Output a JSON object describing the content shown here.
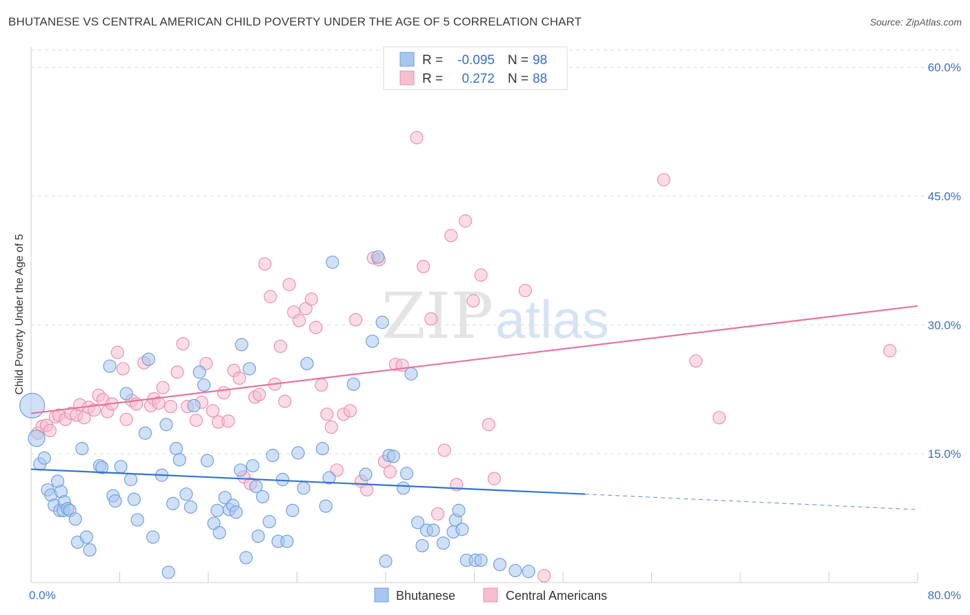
{
  "title": "BHUTANESE VS CENTRAL AMERICAN CHILD POVERTY UNDER THE AGE OF 5 CORRELATION CHART",
  "source": "Source: ZipAtlas.com",
  "watermark": {
    "zip": "ZIP",
    "atlas": "atlas"
  },
  "colors": {
    "blue_fill": "#a9c6ee",
    "blue_stroke": "#6f9fe0",
    "blue_line": "#2f73d4",
    "pink_fill": "#f6bfd0",
    "pink_stroke": "#ec8fae",
    "pink_line": "#e8739c",
    "grid": "#dddddd",
    "tick_label": "#3a6fc4"
  },
  "legend": {
    "rows": [
      {
        "r_label": "R =",
        "r_value": "-0.095",
        "n_label": "N =",
        "n_value": "98"
      },
      {
        "r_label": "R =",
        "r_value": "0.272",
        "n_label": "N =",
        "n_value": "88"
      }
    ]
  },
  "chart_data": {
    "type": "scatter",
    "title": "BHUTANESE VS CENTRAL AMERICAN CHILD POVERTY UNDER THE AGE OF 5 CORRELATION CHART",
    "xlabel": "",
    "ylabel": "Child Poverty Under the Age of 5",
    "xlim": [
      0,
      80
    ],
    "ylim": [
      0,
      60
    ],
    "x_tick_labels": [
      "0.0%",
      "80.0%"
    ],
    "y_ticks": [
      15,
      30,
      45,
      60
    ],
    "y_tick_labels": [
      "15.0%",
      "30.0%",
      "45.0%",
      "60.0%"
    ],
    "grid": true,
    "legend_position": "top-center",
    "series": [
      {
        "name": "Bhutanese",
        "color": "#a9c6ee",
        "r": -0.095,
        "n": 98,
        "trend": {
          "x0": 0,
          "y0": 13.2,
          "x1": 50,
          "y1": 10.3,
          "dashed_to_x": 80,
          "dashed_y": 8.5
        },
        "points": [
          [
            0.1,
            20.6
          ],
          [
            0.5,
            16.8
          ],
          [
            0.8,
            13.8
          ],
          [
            1.2,
            14.5
          ],
          [
            1.5,
            10.8
          ],
          [
            1.8,
            10.2
          ],
          [
            2.1,
            9.0
          ],
          [
            2.4,
            11.8
          ],
          [
            2.6,
            8.4
          ],
          [
            2.7,
            10.6
          ],
          [
            2.9,
            8.4
          ],
          [
            3.0,
            9.4
          ],
          [
            3.3,
            8.6
          ],
          [
            3.5,
            8.4
          ],
          [
            4.0,
            7.4
          ],
          [
            4.2,
            4.7
          ],
          [
            4.6,
            15.6
          ],
          [
            5.0,
            5.3
          ],
          [
            5.3,
            3.8
          ],
          [
            6.2,
            13.6
          ],
          [
            6.4,
            13.4
          ],
          [
            7.1,
            25.2
          ],
          [
            7.4,
            10.1
          ],
          [
            7.6,
            9.5
          ],
          [
            8.1,
            13.5
          ],
          [
            8.6,
            22.0
          ],
          [
            9.0,
            12.0
          ],
          [
            9.3,
            9.7
          ],
          [
            9.6,
            7.3
          ],
          [
            10.3,
            17.4
          ],
          [
            10.6,
            26.0
          ],
          [
            11.0,
            5.3
          ],
          [
            11.8,
            12.5
          ],
          [
            12.2,
            18.4
          ],
          [
            12.4,
            1.2
          ],
          [
            12.8,
            9.2
          ],
          [
            13.1,
            15.6
          ],
          [
            13.4,
            14.3
          ],
          [
            14.0,
            10.3
          ],
          [
            14.4,
            8.8
          ],
          [
            14.7,
            20.6
          ],
          [
            15.2,
            24.5
          ],
          [
            15.6,
            23.0
          ],
          [
            15.9,
            14.2
          ],
          [
            16.5,
            6.9
          ],
          [
            16.8,
            8.4
          ],
          [
            17.0,
            5.8
          ],
          [
            17.5,
            9.9
          ],
          [
            17.9,
            8.5
          ],
          [
            18.2,
            9.0
          ],
          [
            18.5,
            8.2
          ],
          [
            18.9,
            13.1
          ],
          [
            19.0,
            27.7
          ],
          [
            19.4,
            2.9
          ],
          [
            19.7,
            24.9
          ],
          [
            20.0,
            13.6
          ],
          [
            20.3,
            11.2
          ],
          [
            20.5,
            5.4
          ],
          [
            20.9,
            10.0
          ],
          [
            21.5,
            7.1
          ],
          [
            21.8,
            14.8
          ],
          [
            22.3,
            4.8
          ],
          [
            22.7,
            12.0
          ],
          [
            23.1,
            4.8
          ],
          [
            23.6,
            8.4
          ],
          [
            24.1,
            15.1
          ],
          [
            24.6,
            11.0
          ],
          [
            24.9,
            25.5
          ],
          [
            26.3,
            15.6
          ],
          [
            26.6,
            8.9
          ],
          [
            26.9,
            12.2
          ],
          [
            27.2,
            37.3
          ],
          [
            29.1,
            23.1
          ],
          [
            30.2,
            12.6
          ],
          [
            30.8,
            28.1
          ],
          [
            31.3,
            37.9
          ],
          [
            31.7,
            30.3
          ],
          [
            32.0,
            2.5
          ],
          [
            32.3,
            14.8
          ],
          [
            32.7,
            14.7
          ],
          [
            33.6,
            11.0
          ],
          [
            33.9,
            12.7
          ],
          [
            34.3,
            24.3
          ],
          [
            34.9,
            7.0
          ],
          [
            35.3,
            4.3
          ],
          [
            35.7,
            6.1
          ],
          [
            36.3,
            6.1
          ],
          [
            37.2,
            4.6
          ],
          [
            38.1,
            5.9
          ],
          [
            38.3,
            7.3
          ],
          [
            38.6,
            8.4
          ],
          [
            38.9,
            6.2
          ],
          [
            39.3,
            2.6
          ],
          [
            40.1,
            2.6
          ],
          [
            40.6,
            2.6
          ],
          [
            42.3,
            2.1
          ],
          [
            43.7,
            1.4
          ],
          [
            44.9,
            1.3
          ]
        ]
      },
      {
        "name": "Central Americans",
        "color": "#f6bfd0",
        "r": 0.272,
        "n": 88,
        "trend": {
          "x0": 0,
          "y0": 19.7,
          "x1": 80,
          "y1": 32.2
        },
        "points": [
          [
            0.6,
            17.4
          ],
          [
            1.0,
            18.2
          ],
          [
            1.4,
            18.3
          ],
          [
            1.7,
            17.7
          ],
          [
            2.2,
            19.3
          ],
          [
            2.5,
            19.5
          ],
          [
            3.1,
            19.0
          ],
          [
            3.6,
            19.7
          ],
          [
            4.1,
            19.5
          ],
          [
            4.4,
            20.7
          ],
          [
            4.8,
            19.2
          ],
          [
            5.2,
            20.4
          ],
          [
            5.7,
            20.1
          ],
          [
            6.1,
            21.8
          ],
          [
            6.5,
            21.3
          ],
          [
            6.9,
            19.9
          ],
          [
            7.3,
            20.8
          ],
          [
            7.8,
            26.8
          ],
          [
            8.3,
            24.9
          ],
          [
            8.6,
            19.0
          ],
          [
            9.1,
            21.2
          ],
          [
            9.5,
            20.8
          ],
          [
            10.2,
            25.6
          ],
          [
            10.8,
            20.6
          ],
          [
            11.1,
            21.4
          ],
          [
            11.5,
            20.9
          ],
          [
            11.9,
            22.7
          ],
          [
            12.6,
            20.5
          ],
          [
            13.2,
            24.5
          ],
          [
            13.7,
            27.8
          ],
          [
            14.1,
            20.5
          ],
          [
            14.9,
            18.9
          ],
          [
            15.4,
            21.0
          ],
          [
            15.8,
            25.5
          ],
          [
            16.4,
            20.0
          ],
          [
            16.9,
            18.7
          ],
          [
            17.4,
            22.1
          ],
          [
            17.8,
            18.8
          ],
          [
            18.3,
            24.7
          ],
          [
            18.8,
            23.8
          ],
          [
            19.2,
            12.3
          ],
          [
            19.8,
            11.5
          ],
          [
            20.2,
            21.6
          ],
          [
            20.6,
            21.9
          ],
          [
            21.1,
            37.1
          ],
          [
            21.6,
            33.3
          ],
          [
            22.0,
            23.1
          ],
          [
            22.5,
            27.5
          ],
          [
            22.9,
            21.1
          ],
          [
            23.3,
            34.7
          ],
          [
            23.7,
            31.5
          ],
          [
            24.2,
            30.5
          ],
          [
            24.8,
            31.9
          ],
          [
            25.3,
            33.0
          ],
          [
            25.7,
            29.7
          ],
          [
            26.2,
            23.0
          ],
          [
            26.7,
            19.6
          ],
          [
            27.1,
            18.1
          ],
          [
            27.6,
            13.1
          ],
          [
            28.2,
            19.6
          ],
          [
            28.8,
            20.0
          ],
          [
            29.3,
            30.6
          ],
          [
            29.8,
            11.8
          ],
          [
            30.3,
            10.8
          ],
          [
            30.9,
            37.8
          ],
          [
            31.4,
            37.6
          ],
          [
            31.9,
            14.1
          ],
          [
            32.4,
            12.9
          ],
          [
            32.9,
            25.4
          ],
          [
            33.5,
            25.3
          ],
          [
            34.8,
            51.8
          ],
          [
            35.4,
            36.8
          ],
          [
            36.1,
            30.7
          ],
          [
            36.7,
            8.0
          ],
          [
            37.3,
            15.4
          ],
          [
            37.9,
            40.4
          ],
          [
            38.4,
            11.4
          ],
          [
            39.2,
            42.1
          ],
          [
            39.9,
            32.8
          ],
          [
            40.6,
            35.8
          ],
          [
            41.3,
            18.4
          ],
          [
            41.8,
            12.1
          ],
          [
            44.6,
            34.0
          ],
          [
            46.3,
            0.8
          ],
          [
            57.1,
            46.9
          ],
          [
            60.0,
            25.8
          ],
          [
            62.1,
            19.2
          ],
          [
            77.5,
            27.0
          ]
        ]
      }
    ]
  }
}
